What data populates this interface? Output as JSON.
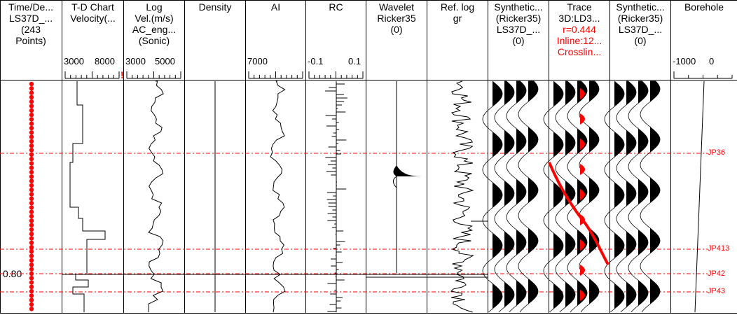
{
  "tracks": [
    {
      "id": "time",
      "lines": [
        "Time/De...",
        "LS37D_...",
        "(243",
        "Points)"
      ]
    },
    {
      "id": "td",
      "lines": [
        "T-D Chart",
        "Velocity(..."
      ]
    },
    {
      "id": "log",
      "lines": [
        "Log",
        "Vel.(m/s)",
        "AC_eng...",
        "(Sonic)"
      ]
    },
    {
      "id": "density",
      "lines": [
        "Density"
      ]
    },
    {
      "id": "ai",
      "lines": [
        "AI"
      ]
    },
    {
      "id": "rc",
      "lines": [
        "RC"
      ]
    },
    {
      "id": "wavelet",
      "lines": [
        "Wavelet",
        "Ricker35",
        "(0)"
      ]
    },
    {
      "id": "reflog",
      "lines": [
        "Ref. log",
        "gr"
      ]
    },
    {
      "id": "synth1",
      "lines": [
        "Synthetic...",
        "(Ricker35)",
        "LS37D_...",
        "(0)"
      ]
    },
    {
      "id": "trace",
      "lines": [
        "Trace",
        "3D:LD3...",
        "r=0.444",
        "Inline:12...",
        "Crosslin..."
      ]
    },
    {
      "id": "synth2",
      "lines": [
        "Synthetic...",
        "(Ricker35)",
        "LS37D_...",
        "(0)"
      ]
    },
    {
      "id": "borehole",
      "lines": [
        "Borehole"
      ]
    }
  ],
  "scales": {
    "td": [
      "3000",
      "8000"
    ],
    "log": [
      "3000",
      "5000"
    ],
    "ai": [
      "7000"
    ],
    "rc": [
      "-0.1",
      "0.1"
    ],
    "borehole": [
      "-1000",
      "0"
    ]
  },
  "time_label": "0.80",
  "markers": [
    "JP36",
    "JP413",
    "JP42",
    "JP43"
  ],
  "colors": {
    "marker": "#ff0000",
    "trace_fill": "#ff0000",
    "ink": "#000000"
  }
}
